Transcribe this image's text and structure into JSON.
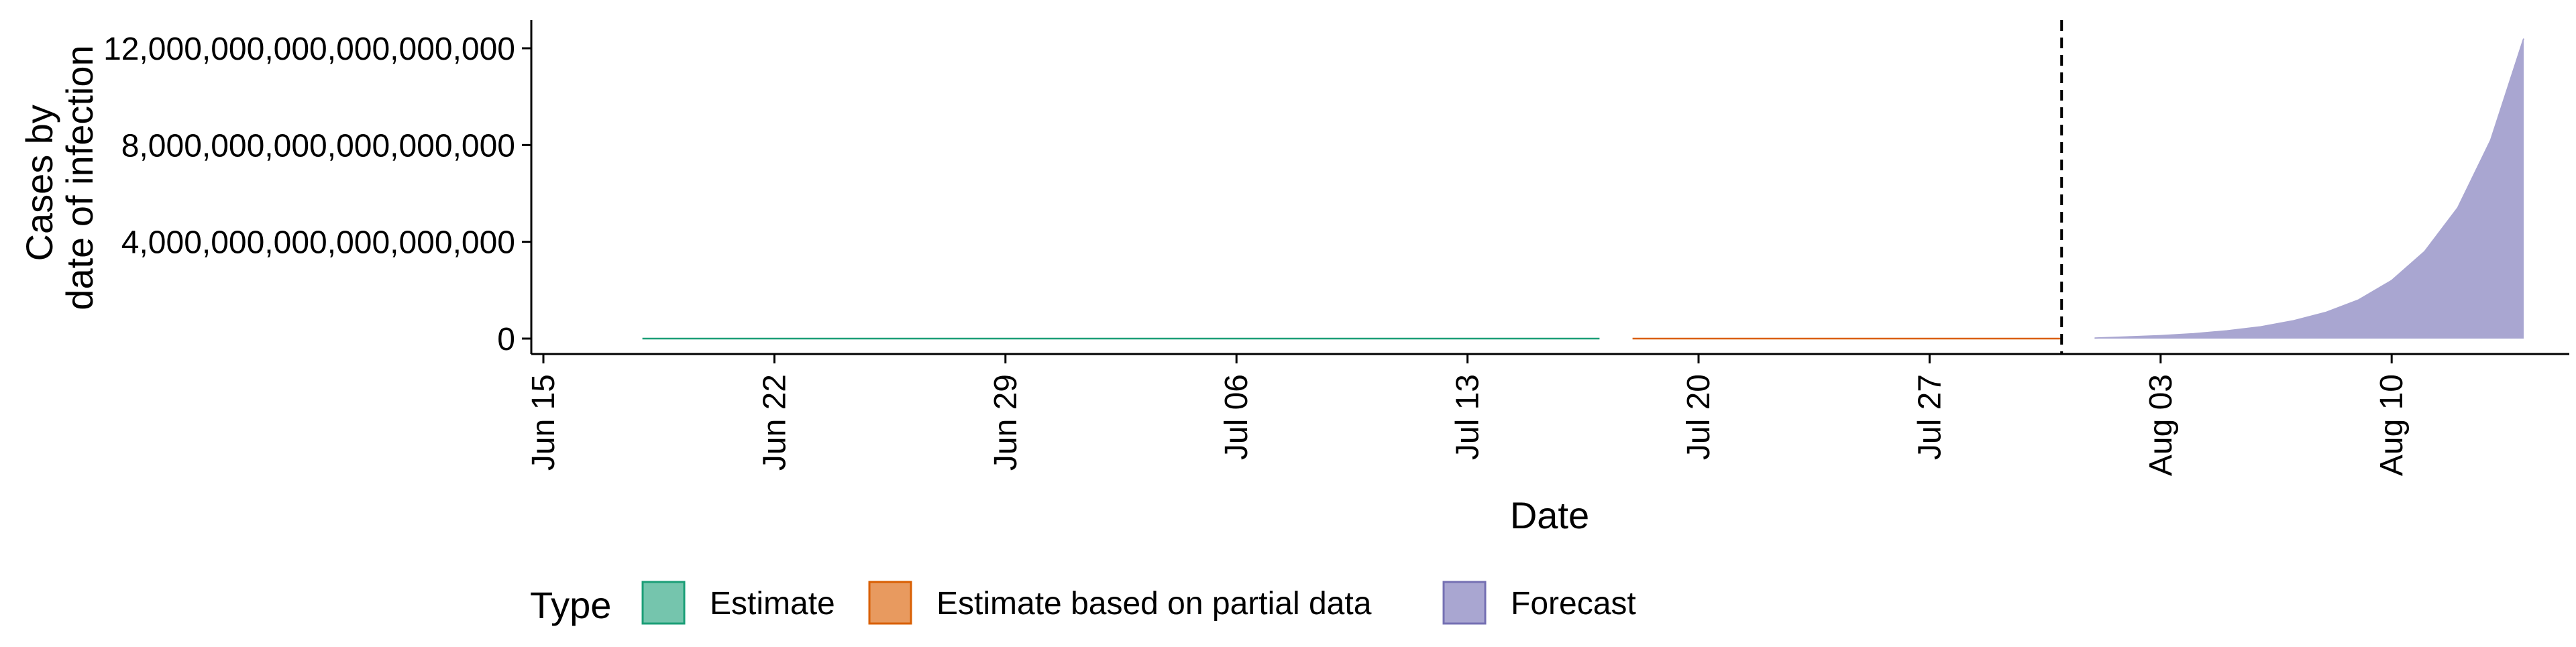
{
  "chart_data": {
    "type": "area",
    "title": "",
    "xlabel": "Date",
    "ylabel_lines": [
      "Cases by",
      "date of infection"
    ],
    "x_ticks": [
      "Jun 15",
      "Jun 22",
      "Jun 29",
      "Jul 06",
      "Jul 13",
      "Jul 20",
      "Jul 27",
      "Aug 03",
      "Aug 10"
    ],
    "x_tick_dates": [
      "2020-06-15",
      "2020-06-22",
      "2020-06-29",
      "2020-07-06",
      "2020-07-13",
      "2020-07-20",
      "2020-07-27",
      "2020-08-03",
      "2020-08-10"
    ],
    "xlim": [
      "2020-06-15",
      "2020-08-17"
    ],
    "y_ticks": [
      0,
      4000000000000000000,
      8000000000000000000,
      12000000000000000000
    ],
    "y_tick_labels": [
      "0",
      "4,000,000,000,000,000,000",
      "8,000,000,000,000,000,000",
      "12,000,000,000,000,000,000"
    ],
    "ylim": [
      0,
      13000000000000000000
    ],
    "forecast_cutoff_date": "2020-07-31",
    "grid": false,
    "legend_position": "bottom",
    "legend_title": "Type",
    "series": [
      {
        "name": "Estimate",
        "color": "#1B9E77",
        "fill": "#75C5AD",
        "style": "line",
        "x": [
          "2020-06-18",
          "2020-07-17"
        ],
        "y": [
          0,
          0
        ]
      },
      {
        "name": "Estimate based on partial data",
        "color": "#D95F02",
        "fill": "#E89A5F",
        "style": "line",
        "x": [
          "2020-07-18",
          "2020-07-31"
        ],
        "y": [
          0,
          0
        ]
      },
      {
        "name": "Forecast",
        "color": "#7570B3",
        "fill": "#A9A6D1",
        "style": "area",
        "x": [
          "2020-08-01",
          "2020-08-02",
          "2020-08-03",
          "2020-08-04",
          "2020-08-05",
          "2020-08-06",
          "2020-08-07",
          "2020-08-08",
          "2020-08-09",
          "2020-08-10",
          "2020-08-11",
          "2020-08-12",
          "2020-08-13",
          "2020-08-14"
        ],
        "y": [
          20000000000000000,
          70000000000000000,
          120000000000000000,
          200000000000000000,
          320000000000000000,
          480000000000000000,
          730000000000000000,
          1080000000000000000,
          1600000000000000000,
          2400000000000000000,
          3600000000000000000,
          5400000000000000000,
          8200000000000000000,
          12400000000000000000
        ]
      }
    ]
  }
}
